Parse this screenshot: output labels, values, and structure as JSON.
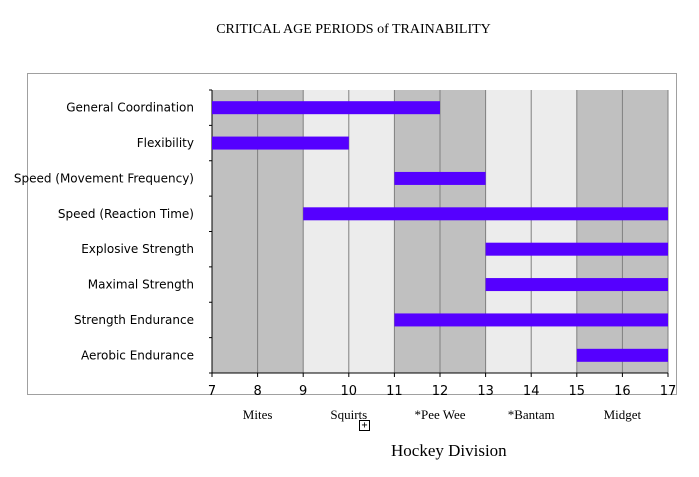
{
  "chart_data": {
    "type": "bar",
    "title": "CRITICAL AGE PERIODS of TRAINABILITY",
    "xlabel": "Hockey Division",
    "ylabel": "",
    "xlim": [
      7,
      17
    ],
    "x_ticks": [
      7,
      8,
      9,
      10,
      11,
      12,
      13,
      14,
      15,
      16,
      17
    ],
    "divisions": [
      {
        "name": "Mites",
        "range": [
          7,
          9
        ]
      },
      {
        "name": "Squirts",
        "range": [
          9,
          11
        ]
      },
      {
        "name": "*Pee Wee",
        "range": [
          11,
          13
        ]
      },
      {
        "name": "*Bantam",
        "range": [
          13,
          15
        ]
      },
      {
        "name": "Midget",
        "range": [
          15,
          17
        ]
      }
    ],
    "categories": [
      "General Coordination",
      "Flexibility",
      "Speed (Movement Frequency)",
      "Speed (Reaction Time)",
      "Explosive Strength",
      "Maximal Strength",
      "Strength Endurance",
      "Aerobic Endurance"
    ],
    "ranges": [
      [
        7,
        12
      ],
      [
        7,
        10
      ],
      [
        11,
        13
      ],
      [
        9,
        17
      ],
      [
        13,
        17
      ],
      [
        13,
        17
      ],
      [
        11,
        17
      ],
      [
        15,
        17
      ]
    ],
    "grid": true,
    "legend": "none",
    "colors": {
      "bar": "#5500ff",
      "band_dark": "#c0c0c0",
      "band_light": "#ececec",
      "gridline": "#7f7f7f"
    }
  },
  "ui": {
    "expand_glyph": "+"
  }
}
